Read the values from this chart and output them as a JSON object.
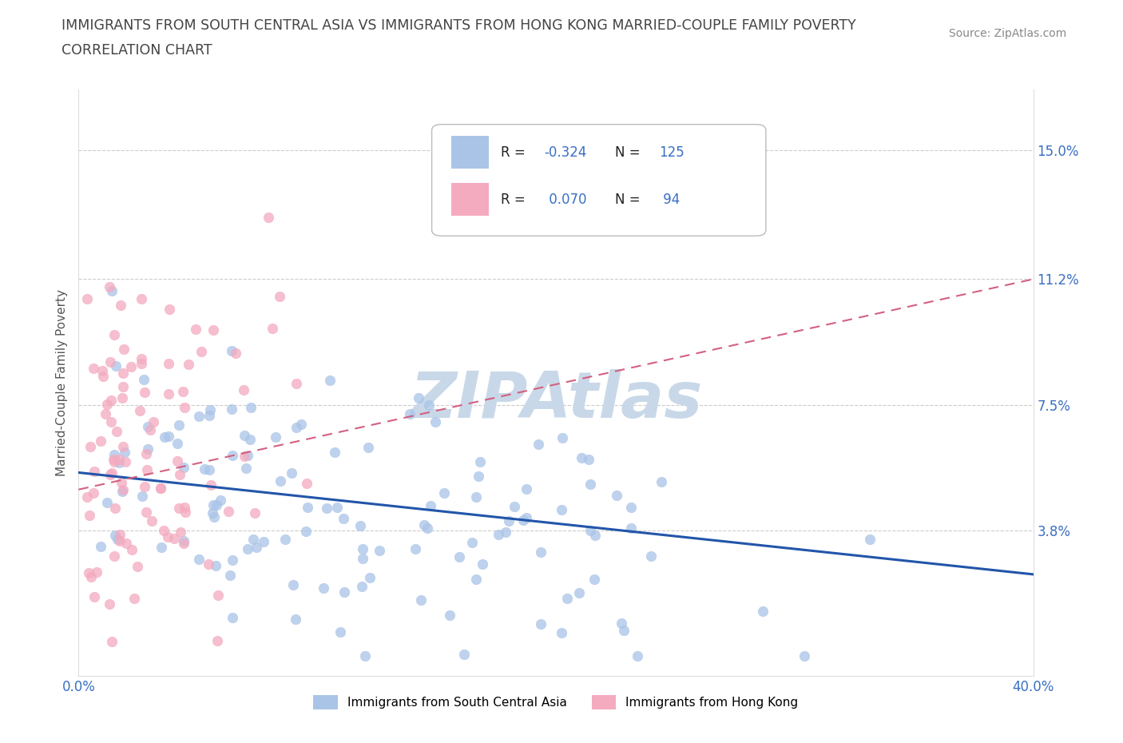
{
  "title_line1": "IMMIGRANTS FROM SOUTH CENTRAL ASIA VS IMMIGRANTS FROM HONG KONG MARRIED-COUPLE FAMILY POVERTY",
  "title_line2": "CORRELATION CHART",
  "source": "Source: ZipAtlas.com",
  "ylabel": "Married-Couple Family Poverty",
  "xlim": [
    0.0,
    0.4
  ],
  "ylim": [
    -0.005,
    0.168
  ],
  "yticks": [
    0.038,
    0.075,
    0.112,
    0.15
  ],
  "ytick_labels": [
    "3.8%",
    "7.5%",
    "11.2%",
    "15.0%"
  ],
  "xticks": [
    0.0,
    0.4
  ],
  "xtick_labels": [
    "0.0%",
    "40.0%"
  ],
  "series1_name": "Immigrants from South Central Asia",
  "series1_color": "#aac4e8",
  "series1_R": -0.324,
  "series1_N": 125,
  "series1_line_color": "#2255aa",
  "series2_name": "Immigrants from Hong Kong",
  "series2_color": "#f4aabf",
  "series2_R": 0.07,
  "series2_N": 94,
  "series2_line_color": "#d46080",
  "watermark": "ZIPAtlas",
  "watermark_color": "#c8d8e8",
  "background_color": "#ffffff",
  "title_color": "#444444",
  "tick_color": "#3a6fc4",
  "grid_color": "#cccccc"
}
